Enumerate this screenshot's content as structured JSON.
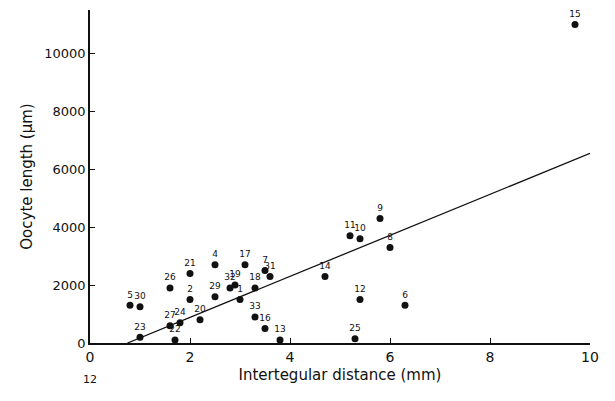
{
  "chart_data": {
    "type": "scatter",
    "x_label": "Intertegular distance (mm)",
    "y_label": "Oocyte length (μm)",
    "annotations": [
      {
        "text": "12",
        "x": 0
      }
    ],
    "xlim": [
      0,
      10
    ],
    "xticks": [
      0,
      2,
      4,
      6,
      8,
      10
    ],
    "ylim": [
      0,
      11500
    ],
    "yticks": [
      0,
      2000,
      4000,
      6000,
      8000,
      10000
    ],
    "grid": false,
    "series": [
      {
        "type": "scatter",
        "color": "#111111",
        "marker": "circle",
        "labels": [
          "1",
          "2",
          "4",
          "5",
          "6",
          "7",
          "8",
          "9",
          "10",
          "11",
          "12",
          "13",
          "14",
          "15",
          "16",
          "17",
          "18",
          "19",
          "20",
          "21",
          "22",
          "23",
          "24",
          "25",
          "26",
          "27",
          "29",
          "30",
          "31",
          "32",
          "33"
        ],
        "x": [
          3.0,
          2.0,
          2.5,
          0.8,
          6.3,
          3.5,
          6.0,
          5.8,
          5.4,
          5.2,
          5.4,
          3.8,
          4.7,
          9.7,
          3.5,
          3.1,
          3.3,
          2.9,
          2.2,
          2.0,
          1.7,
          1.0,
          1.8,
          5.3,
          1.6,
          1.6,
          2.5,
          1.0,
          3.6,
          2.8,
          3.3
        ],
        "values": [
          1500,
          1500,
          2700,
          1300,
          1300,
          2500,
          3300,
          4300,
          3600,
          3700,
          1500,
          100,
          2300,
          11000,
          500,
          2700,
          1900,
          2000,
          800,
          2400,
          100,
          200,
          700,
          150,
          1900,
          600,
          1600,
          1250,
          2300,
          1900,
          900
        ]
      },
      {
        "type": "line",
        "color": "#111111",
        "line_style": "solid",
        "x": [
          0.75,
          10
        ],
        "values": [
          0,
          6550
        ]
      }
    ]
  }
}
